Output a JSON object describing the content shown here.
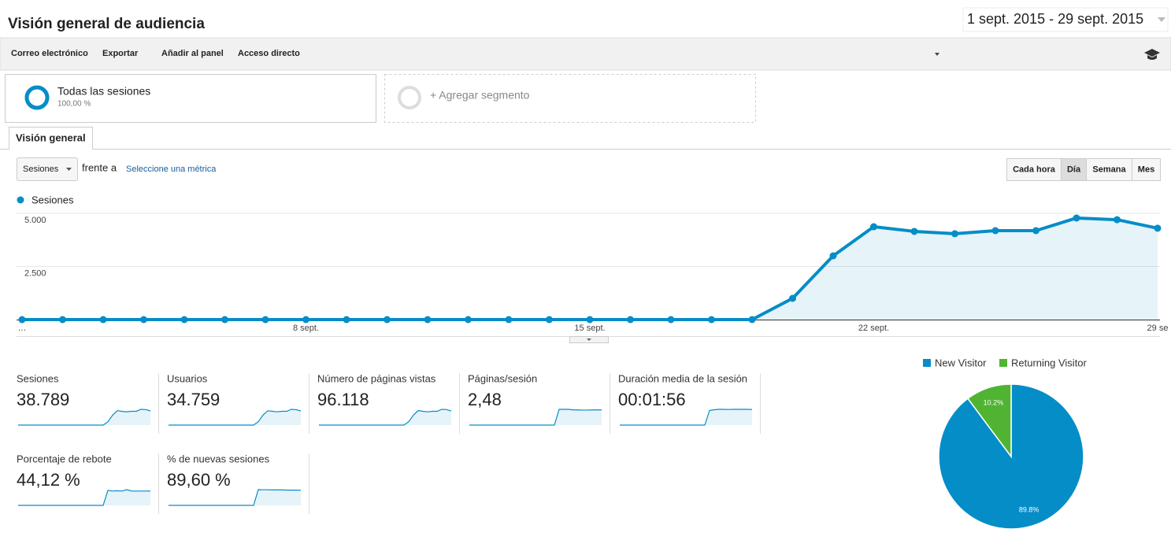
{
  "header": {
    "title": "Visión general de audiencia",
    "date_range": "1 sept. 2015 - 29 sept. 2015"
  },
  "toolbar": [
    "Correo electrónico",
    "Exportar",
    "Añadir al panel",
    "Acceso directo"
  ],
  "segments": {
    "active": {
      "name": "Todas las sesiones",
      "share": "100,00 %"
    },
    "add": "+ Agregar segmento"
  },
  "tab": "Visión general",
  "controls": {
    "metric_select": "Sesiones",
    "versus": "frente a",
    "metric_link": "Seleccione una métrica",
    "granularity": [
      "Cada hora",
      "Día",
      "Semana",
      "Mes"
    ]
  },
  "chart_data": [
    {
      "type": "line",
      "categories": [
        "…",
        null,
        null,
        null,
        null,
        null,
        null,
        "8 sept.",
        null,
        null,
        null,
        null,
        null,
        null,
        "15 sept.",
        null,
        null,
        null,
        null,
        null,
        null,
        "22 sept.",
        null,
        null,
        null,
        null,
        null,
        null,
        "29 se"
      ],
      "series": [
        {
          "name": "Sesiones",
          "color": "#058dc7",
          "values": [
            0,
            0,
            0,
            0,
            0,
            0,
            0,
            0,
            0,
            0,
            0,
            0,
            0,
            0,
            0,
            0,
            0,
            0,
            0,
            1000,
            3000,
            4370,
            4150,
            4040,
            4185,
            4185,
            4780,
            4700,
            4300
          ]
        }
      ],
      "ylim": [
        0,
        5000
      ],
      "yticks": [
        {
          "value": 2500,
          "label": "2.500"
        },
        {
          "value": 5000,
          "label": "5.000"
        }
      ],
      "grid": true
    },
    {
      "type": "pie",
      "categories": [
        "New Visitor",
        "Returning Visitor"
      ],
      "values": [
        89.8,
        10.2
      ],
      "value_labels": [
        "89.8%",
        "10.2%"
      ],
      "colors": [
        "#058dc7",
        "#50b432"
      ]
    }
  ],
  "metrics": [
    {
      "label": "Sesiones",
      "value": "38.789",
      "sparkline": [
        0,
        0,
        0,
        0,
        0,
        0,
        0,
        0,
        0,
        0,
        0,
        0,
        0,
        0,
        0,
        0,
        0,
        0,
        0,
        1000,
        3000,
        4370,
        4150,
        4040,
        4185,
        4185,
        4780,
        4700,
        4300
      ]
    },
    {
      "label": "Usuarios",
      "value": "34.759",
      "sparkline": [
        0,
        0,
        0,
        0,
        0,
        0,
        0,
        0,
        0,
        0,
        0,
        0,
        0,
        0,
        0,
        0,
        0,
        0,
        0,
        950,
        2800,
        4000,
        3850,
        3700,
        3850,
        3850,
        4400,
        4300,
        3950
      ]
    },
    {
      "label": "Número de páginas vistas",
      "value": "96.118",
      "sparkline": [
        0,
        0,
        0,
        0,
        0,
        0,
        0,
        0,
        0,
        0,
        0,
        0,
        0,
        0,
        0,
        0,
        0,
        0,
        0,
        2600,
        7500,
        11000,
        10400,
        10000,
        10400,
        10400,
        11900,
        11700,
        10700
      ]
    },
    {
      "label": "Páginas/sesión",
      "value": "2,48",
      "sparkline": [
        0,
        0,
        0,
        0,
        0,
        0,
        0,
        0,
        0,
        0,
        0,
        0,
        0,
        0,
        0,
        0,
        0,
        0,
        0,
        2.6,
        2.6,
        2.6,
        2.5,
        2.5,
        2.48,
        2.48,
        2.5,
        2.5,
        2.5
      ]
    },
    {
      "label": "Duración media de la sesión",
      "value": "00:01:56",
      "sparkline": [
        0,
        0,
        0,
        0,
        0,
        0,
        0,
        0,
        0,
        0,
        0,
        0,
        0,
        0,
        0,
        0,
        0,
        0,
        0,
        110,
        115,
        118,
        118,
        117,
        118,
        118,
        118,
        118,
        117
      ]
    },
    {
      "label": "Porcentaje de rebote",
      "value": "44,12 %",
      "sparkline": [
        0,
        0,
        0,
        0,
        0,
        0,
        0,
        0,
        0,
        0,
        0,
        0,
        0,
        0,
        0,
        0,
        0,
        0,
        0,
        42,
        40,
        41,
        40,
        44,
        40,
        40,
        40,
        40,
        40
      ]
    },
    {
      "label": "% de nuevas sesiones",
      "value": "89,60 %",
      "sparkline": [
        0,
        0,
        0,
        0,
        0,
        0,
        0,
        0,
        0,
        0,
        0,
        0,
        0,
        0,
        0,
        0,
        0,
        0,
        0,
        98,
        97,
        97,
        96,
        96,
        96,
        95,
        95,
        95,
        94
      ]
    }
  ]
}
